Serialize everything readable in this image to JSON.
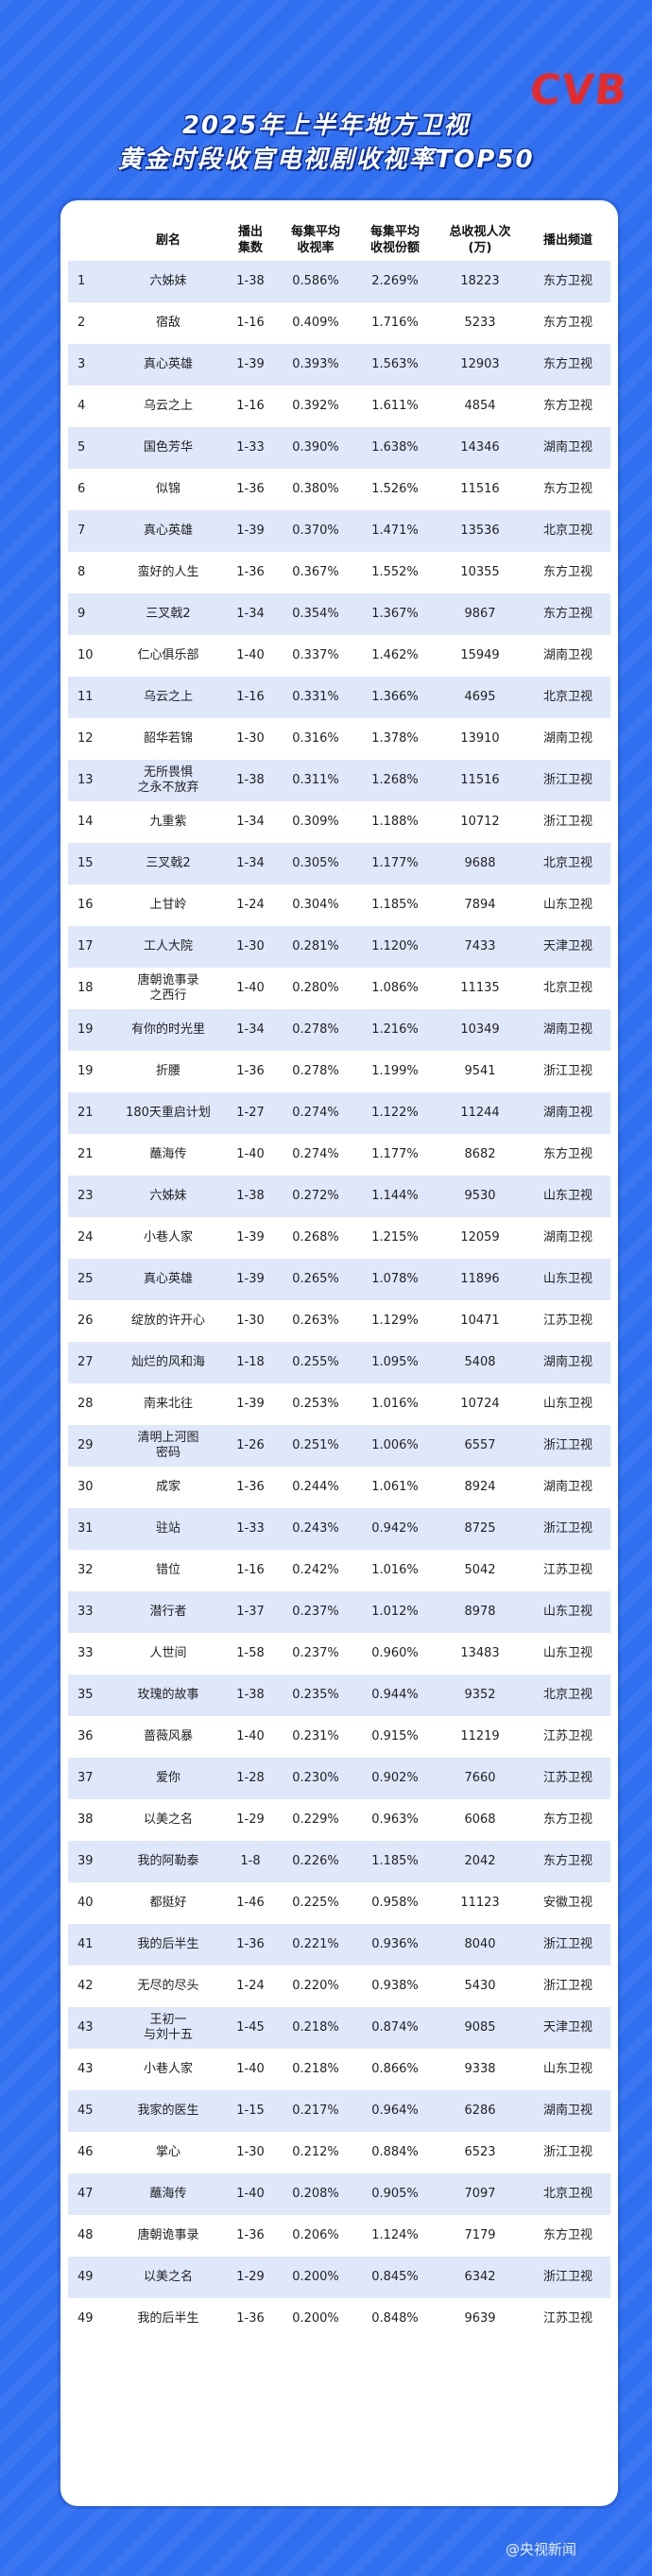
{
  "logo": "CVB",
  "title_line1": "2025年上半年地方卫视",
  "title_line2": "黄金时段收官电视剧收视率TOP50",
  "headers": [
    "",
    "剧名",
    "播出\n集数",
    "每集平均\n收视率",
    "每集平均\n收视份额",
    "总收视人次\n(万)",
    "播出频道"
  ],
  "rows": [
    [
      "1",
      "六姊妹",
      "1-38",
      "0.586%",
      "2.269%",
      "18223",
      "东方卫视"
    ],
    [
      "2",
      "宿敌",
      "1-16",
      "0.409%",
      "1.716%",
      "5233",
      "东方卫视"
    ],
    [
      "3",
      "真心英雄",
      "1-39",
      "0.393%",
      "1.563%",
      "12903",
      "东方卫视"
    ],
    [
      "4",
      "乌云之上",
      "1-16",
      "0.392%",
      "1.611%",
      "4854",
      "东方卫视"
    ],
    [
      "5",
      "国色芳华",
      "1-33",
      "0.390%",
      "1.638%",
      "14346",
      "湖南卫视"
    ],
    [
      "6",
      "似锦",
      "1-36",
      "0.380%",
      "1.526%",
      "11516",
      "东方卫视"
    ],
    [
      "7",
      "真心英雄",
      "1-39",
      "0.370%",
      "1.471%",
      "13536",
      "北京卫视"
    ],
    [
      "8",
      "蛮好的人生",
      "1-36",
      "0.367%",
      "1.552%",
      "10355",
      "东方卫视"
    ],
    [
      "9",
      "三叉戟2",
      "1-34",
      "0.354%",
      "1.367%",
      "9867",
      "东方卫视"
    ],
    [
      "10",
      "仁心俱乐部",
      "1-40",
      "0.337%",
      "1.462%",
      "15949",
      "湖南卫视"
    ],
    [
      "11",
      "乌云之上",
      "1-16",
      "0.331%",
      "1.366%",
      "4695",
      "北京卫视"
    ],
    [
      "12",
      "韶华若锦",
      "1-30",
      "0.316%",
      "1.378%",
      "13910",
      "湖南卫视"
    ],
    [
      "13",
      "无所畏惧\n之永不放弃",
      "1-38",
      "0.311%",
      "1.268%",
      "11516",
      "浙江卫视"
    ],
    [
      "14",
      "九重紫",
      "1-34",
      "0.309%",
      "1.188%",
      "10712",
      "浙江卫视"
    ],
    [
      "15",
      "三叉戟2",
      "1-34",
      "0.305%",
      "1.177%",
      "9688",
      "北京卫视"
    ],
    [
      "16",
      "上甘岭",
      "1-24",
      "0.304%",
      "1.185%",
      "7894",
      "山东卫视"
    ],
    [
      "17",
      "工人大院",
      "1-30",
      "0.281%",
      "1.120%",
      "7433",
      "天津卫视"
    ],
    [
      "18",
      "唐朝诡事录\n之西行",
      "1-40",
      "0.280%",
      "1.086%",
      "11135",
      "北京卫视"
    ],
    [
      "19",
      "有你的时光里",
      "1-34",
      "0.278%",
      "1.216%",
      "10349",
      "湖南卫视"
    ],
    [
      "19",
      "折腰",
      "1-36",
      "0.278%",
      "1.199%",
      "9541",
      "浙江卫视"
    ],
    [
      "21",
      "180天重启计划",
      "1-27",
      "0.274%",
      "1.122%",
      "11244",
      "湖南卫视"
    ],
    [
      "21",
      "蘸海传",
      "1-40",
      "0.274%",
      "1.177%",
      "8682",
      "东方卫视"
    ],
    [
      "23",
      "六姊妹",
      "1-38",
      "0.272%",
      "1.144%",
      "9530",
      "山东卫视"
    ],
    [
      "24",
      "小巷人家",
      "1-39",
      "0.268%",
      "1.215%",
      "12059",
      "湖南卫视"
    ],
    [
      "25",
      "真心英雄",
      "1-39",
      "0.265%",
      "1.078%",
      "11896",
      "山东卫视"
    ],
    [
      "26",
      "绽放的许开心",
      "1-30",
      "0.263%",
      "1.129%",
      "10471",
      "江苏卫视"
    ],
    [
      "27",
      "灿烂的风和海",
      "1-18",
      "0.255%",
      "1.095%",
      "5408",
      "湖南卫视"
    ],
    [
      "28",
      "南来北往",
      "1-39",
      "0.253%",
      "1.016%",
      "10724",
      "山东卫视"
    ],
    [
      "29",
      "清明上河图\n密码",
      "1-26",
      "0.251%",
      "1.006%",
      "6557",
      "浙江卫视"
    ],
    [
      "30",
      "成家",
      "1-36",
      "0.244%",
      "1.061%",
      "8924",
      "湖南卫视"
    ],
    [
      "31",
      "驻站",
      "1-33",
      "0.243%",
      "0.942%",
      "8725",
      "浙江卫视"
    ],
    [
      "32",
      "错位",
      "1-16",
      "0.242%",
      "1.016%",
      "5042",
      "江苏卫视"
    ],
    [
      "33",
      "潜行者",
      "1-37",
      "0.237%",
      "1.012%",
      "8978",
      "山东卫视"
    ],
    [
      "33",
      "人世间",
      "1-58",
      "0.237%",
      "0.960%",
      "13483",
      "山东卫视"
    ],
    [
      "35",
      "玫瑰的故事",
      "1-38",
      "0.235%",
      "0.944%",
      "9352",
      "北京卫视"
    ],
    [
      "36",
      "蔷薇风暴",
      "1-40",
      "0.231%",
      "0.915%",
      "11219",
      "江苏卫视"
    ],
    [
      "37",
      "爱你",
      "1-28",
      "0.230%",
      "0.902%",
      "7660",
      "江苏卫视"
    ],
    [
      "38",
      "以美之名",
      "1-29",
      "0.229%",
      "0.963%",
      "6068",
      "东方卫视"
    ],
    [
      "39",
      "我的阿勒泰",
      "1-8",
      "0.226%",
      "1.185%",
      "2042",
      "东方卫视"
    ],
    [
      "40",
      "都挺好",
      "1-46",
      "0.225%",
      "0.958%",
      "11123",
      "安徽卫视"
    ],
    [
      "41",
      "我的后半生",
      "1-36",
      "0.221%",
      "0.936%",
      "8040",
      "浙江卫视"
    ],
    [
      "42",
      "无尽的尽头",
      "1-24",
      "0.220%",
      "0.938%",
      "5430",
      "浙江卫视"
    ],
    [
      "43",
      "王初一\n与刘十五",
      "1-45",
      "0.218%",
      "0.874%",
      "9085",
      "天津卫视"
    ],
    [
      "43",
      "小巷人家",
      "1-40",
      "0.218%",
      "0.866%",
      "9338",
      "山东卫视"
    ],
    [
      "45",
      "我家的医生",
      "1-15",
      "0.217%",
      "0.964%",
      "6286",
      "湖南卫视"
    ],
    [
      "46",
      "掌心",
      "1-30",
      "0.212%",
      "0.884%",
      "6523",
      "浙江卫视"
    ],
    [
      "47",
      "蘸海传",
      "1-40",
      "0.208%",
      "0.905%",
      "7097",
      "北京卫视"
    ],
    [
      "48",
      "唐朝诡事录",
      "1-36",
      "0.206%",
      "1.124%",
      "7179",
      "东方卫视"
    ],
    [
      "49",
      "以美之名",
      "1-29",
      "0.200%",
      "0.845%",
      "6342",
      "浙江卫视"
    ],
    [
      "49",
      "我的后半生",
      "1-36",
      "0.200%",
      "0.848%",
      "9639",
      "江苏卫视"
    ]
  ],
  "watermark": "@央视新闻",
  "colors": {
    "background": "#2f6ff0",
    "logo": "#e42b2b",
    "row_alt": "#dfe7fb"
  }
}
